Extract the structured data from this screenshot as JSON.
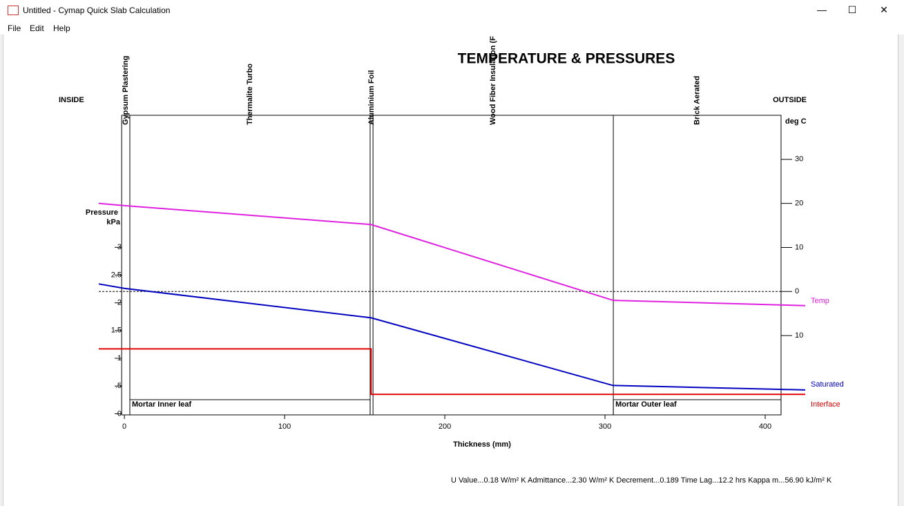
{
  "window": {
    "title": "Untitled - Cymap Quick Slab Calculation",
    "menu": [
      "File",
      "Edit",
      "Help"
    ]
  },
  "chart_data": {
    "type": "line",
    "title": "TEMPERATURE & PRESSURES",
    "inside_label": "INSIDE",
    "outside_label": "OUTSIDE",
    "y_label": [
      "Pressure",
      "kPa"
    ],
    "y2_label": "deg C",
    "x_label": "Thickness (mm)",
    "footer": "U Value...0.18 W/m² K  Admittance...2.30 W/m² K  Decrement...0.189  Time Lag...12.2 hrs  Kappa m...56.90 kJ/m² K",
    "layers": [
      "Gypsum Plastering",
      "Thermalite Turbo",
      "Aluminium Foil",
      "Wood Fiber Insulation (F",
      "Brick Aerated"
    ],
    "layer_boundaries": [
      -1.7,
      3.4,
      153.4,
      155.2,
      305.2,
      409.9
    ],
    "mortar_labels": [
      "Mortar Inner leaf",
      "Mortar Outer leaf"
    ],
    "xlim": [
      -16,
      425
    ],
    "xticks": [
      0,
      100,
      200,
      300,
      400
    ],
    "ylim": [
      -0.02,
      5.38
    ],
    "yticks": [
      3,
      2.5,
      2,
      1.5,
      1,
      {
        "value": 0.5,
        "label": ".5"
      },
      0
    ],
    "y2lim": [
      -28,
      40
    ],
    "y2ticks": [
      30,
      20,
      10,
      0,
      {
        "value": -10,
        "label": "10"
      }
    ],
    "series": [
      {
        "name": "Temp",
        "color": "#e020e0",
        "axis": "y2",
        "x": [
          -16,
          0,
          154,
          305,
          425
        ],
        "values": [
          20.0,
          19.5,
          15.2,
          -2.0,
          -3.2
        ]
      },
      {
        "name": "Saturated",
        "color": "#0000c0",
        "x": [
          -16,
          0,
          154,
          305,
          425
        ],
        "values": [
          2.34,
          2.26,
          1.73,
          0.51,
          0.43
        ]
      },
      {
        "name": "Interface",
        "color": "#e00000",
        "x": [
          -16,
          154,
          154,
          425
        ],
        "values": [
          1.17,
          1.17,
          0.35,
          0.35
        ]
      }
    ]
  }
}
